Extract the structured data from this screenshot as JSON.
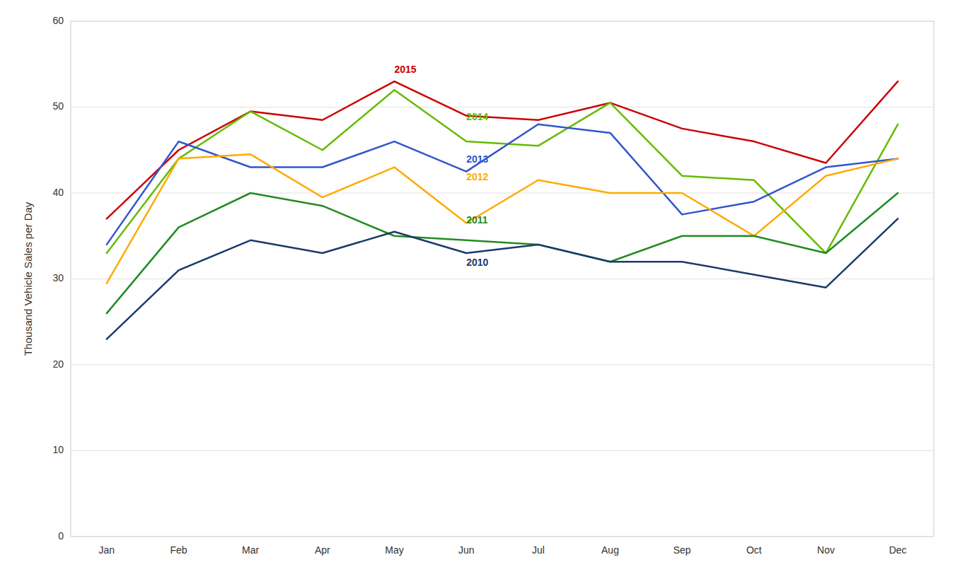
{
  "chart_data": {
    "type": "line",
    "ylabel": "Thousand Vehicle Sales per Day",
    "categories": [
      "Jan",
      "Feb",
      "Mar",
      "Apr",
      "May",
      "Jun",
      "Jul",
      "Aug",
      "Sep",
      "Oct",
      "Nov",
      "Dec"
    ],
    "series": [
      {
        "name": "2015",
        "color": "#cc0000",
        "values": [
          37.0,
          45.0,
          49.5,
          48.5,
          53.0,
          49.0,
          48.5,
          50.5,
          47.5,
          46.0,
          43.5,
          53.0
        ],
        "label_x": "May",
        "label_y": 54.0
      },
      {
        "name": "2014",
        "color": "#66bb00",
        "values": [
          33.0,
          44.0,
          49.5,
          45.0,
          52.0,
          46.0,
          45.5,
          50.5,
          42.0,
          41.5,
          33.0,
          48.0
        ],
        "label_x": "Jun",
        "label_y": 48.5
      },
      {
        "name": "2013",
        "color": "#3355cc",
        "values": [
          34.0,
          46.0,
          43.0,
          43.0,
          46.0,
          42.5,
          48.0,
          47.0,
          37.5,
          39.0,
          43.0,
          44.0
        ],
        "label_x": "Jun",
        "label_y": 43.5
      },
      {
        "name": "2012",
        "color": "#ffaa00",
        "values": [
          29.5,
          44.0,
          44.5,
          39.5,
          43.0,
          36.5,
          41.5,
          40.0,
          40.0,
          35.0,
          42.0,
          44.0
        ],
        "label_x": "Jun",
        "label_y": 41.5
      },
      {
        "name": "2011",
        "color": "#228B22",
        "values": [
          26.0,
          36.0,
          40.0,
          38.5,
          35.0,
          34.5,
          34.0,
          32.0,
          35.0,
          35.0,
          33.0,
          40.0
        ],
        "label_x": "Jun",
        "label_y": 36.5
      },
      {
        "name": "2010",
        "color": "#1a3a6b",
        "values": [
          23.0,
          31.0,
          34.5,
          33.0,
          35.5,
          33.0,
          34.0,
          32.0,
          32.0,
          30.5,
          29.0,
          37.0
        ],
        "label_x": "Jun",
        "label_y": 31.5
      }
    ],
    "ylim": [
      0,
      60
    ],
    "yticks": [
      0,
      10,
      20,
      30,
      40,
      50,
      60
    ],
    "grid": true
  }
}
